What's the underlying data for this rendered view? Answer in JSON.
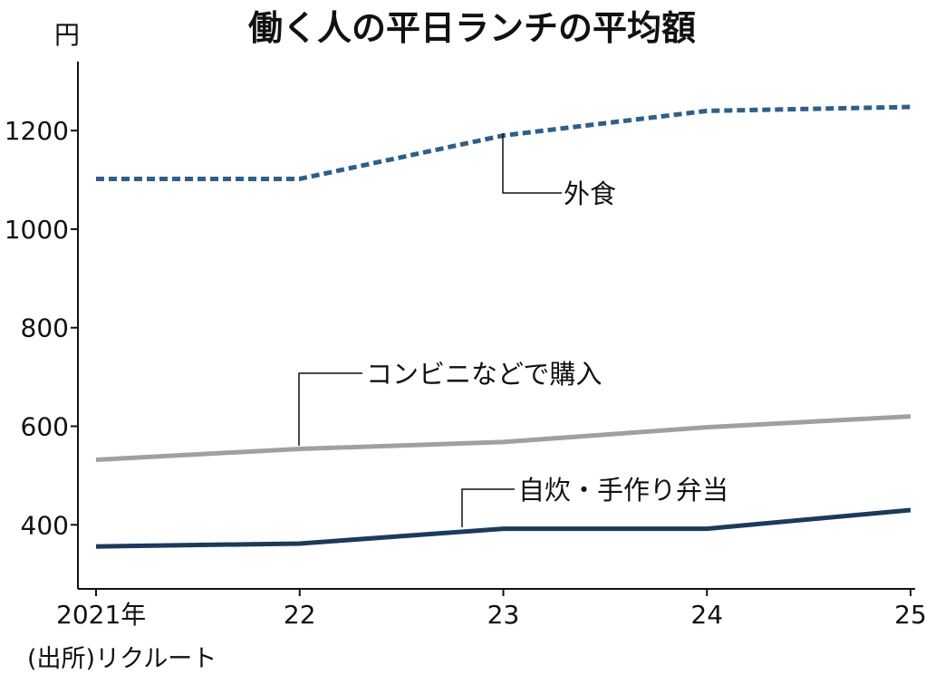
{
  "chart_data": {
    "type": "line",
    "title": "働く人の平日ランチの平均額",
    "ylabel": "円",
    "source": "(出所)リクルート",
    "categories": [
      "2021年",
      "22",
      "23",
      "24",
      "25"
    ],
    "ylim": [
      270,
      1340
    ],
    "yticks": [
      400,
      600,
      800,
      1000,
      1200
    ],
    "grid": false,
    "legend": "inline-labels",
    "series": [
      {
        "name": "外食",
        "values": [
          1102,
          1102,
          1190,
          1240,
          1248
        ],
        "color": "#2f5f8a",
        "style": "dotted"
      },
      {
        "name": "コンビニなどで購入",
        "values": [
          532,
          554,
          568,
          598,
          620
        ],
        "color": "#a0a0a0",
        "style": "solid"
      },
      {
        "name": "自炊・手作り弁当",
        "values": [
          356,
          362,
          392,
          392,
          430
        ],
        "color": "#1b3a5c",
        "style": "solid"
      }
    ]
  }
}
